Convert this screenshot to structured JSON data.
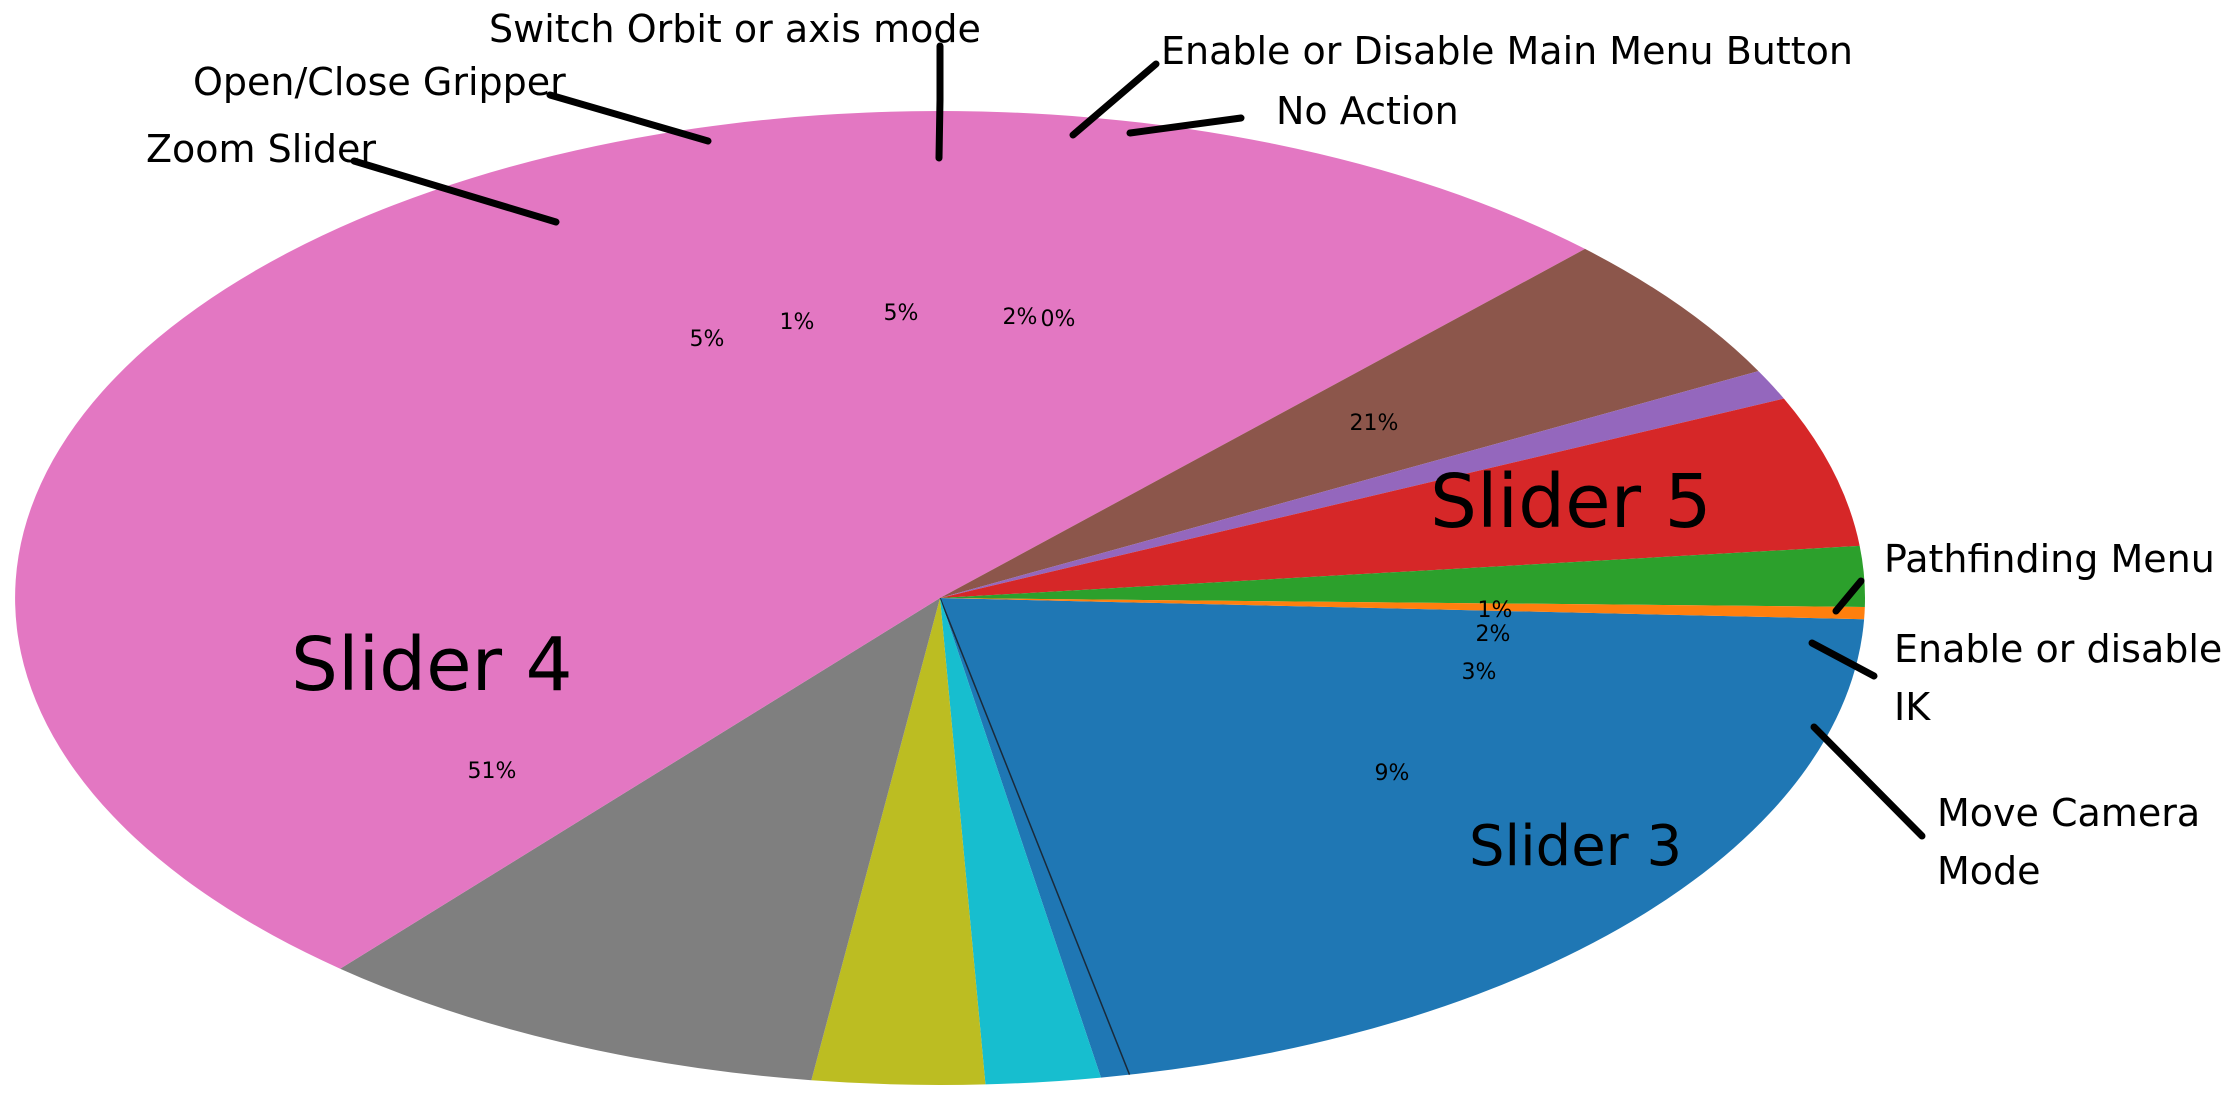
{
  "chart_data": {
    "type": "pie",
    "title": "",
    "slices": [
      {
        "label": "Slider 5",
        "value": 21,
        "pct_label": "21%",
        "color": "#1f77b4",
        "label_style": "inside"
      },
      {
        "label": "Pathfinding Menu",
        "value": 0.5,
        "pct_label": "1%",
        "color": "#1f77b4",
        "label_style": "outside"
      },
      {
        "label": "Enable or disable IK",
        "value": 2,
        "pct_label": "2%",
        "color": "#17becf",
        "label_style": "outside"
      },
      {
        "label": "Move Camera Mode",
        "value": 3,
        "pct_label": "3%",
        "color": "#bcbd22",
        "label_style": "outside"
      },
      {
        "label": "Slider 3",
        "value": 9,
        "pct_label": "9%",
        "color": "#7f7f7f",
        "label_style": "inside"
      },
      {
        "label": "Slider 4",
        "value": 51,
        "pct_label": "51%",
        "color": "#e377c2",
        "label_style": "inside"
      },
      {
        "label": "Zoom Slider",
        "value": 5,
        "pct_label": "5%",
        "color": "#8c564b",
        "label_style": "outside"
      },
      {
        "label": "Open/Close Gripper",
        "value": 1,
        "pct_label": "1%",
        "color": "#9467bd",
        "label_style": "outside"
      },
      {
        "label": "Switch Orbit or axis mode",
        "value": 5,
        "pct_label": "5%",
        "color": "#d62728",
        "label_style": "outside"
      },
      {
        "label": "Enable or Disable Main Menu Button",
        "value": 2,
        "pct_label": "2%",
        "color": "#2ca02c",
        "label_style": "outside"
      },
      {
        "label": "No Action",
        "value": 0.4,
        "pct_label": "0%",
        "color": "#ff7f0e",
        "label_style": "outside"
      }
    ]
  }
}
